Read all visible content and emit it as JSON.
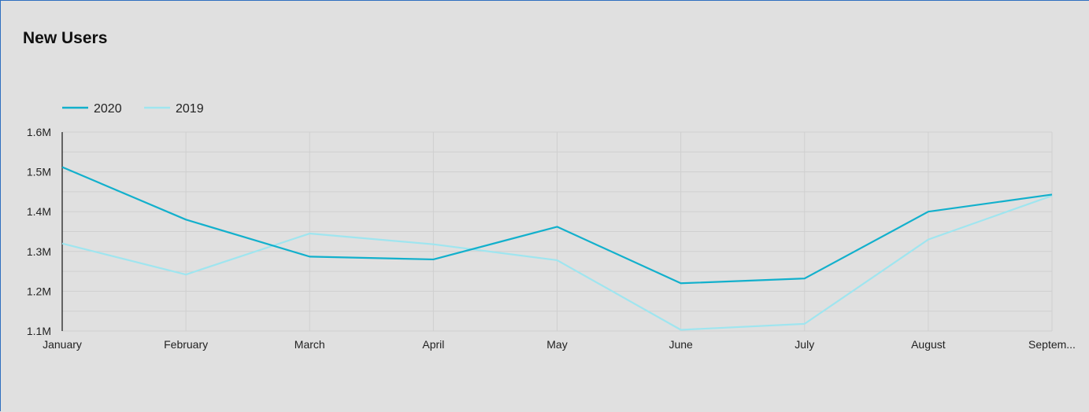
{
  "widget": {
    "title": "New Users"
  },
  "chart_data": {
    "type": "line",
    "title": "New Users",
    "xlabel": "",
    "ylabel": "",
    "categories": [
      "January",
      "February",
      "March",
      "April",
      "May",
      "June",
      "July",
      "August",
      "Septem..."
    ],
    "ylim": [
      1100000,
      1600000
    ],
    "yticks": [
      1100000,
      1200000,
      1300000,
      1400000,
      1500000,
      1600000
    ],
    "ytick_labels": [
      "1.1M",
      "1.2M",
      "1.3M",
      "1.4M",
      "1.5M",
      "1.6M"
    ],
    "grid": true,
    "legend_position": "top-left",
    "series": [
      {
        "name": "2020",
        "color": "#12b0cc",
        "values": [
          1512000,
          1380000,
          1287000,
          1280000,
          1362000,
          1220000,
          1232000,
          1400000,
          1443000
        ]
      },
      {
        "name": "2019",
        "color": "#9fe5ef",
        "values": [
          1320000,
          1242000,
          1345000,
          1318000,
          1278000,
          1103000,
          1118000,
          1330000,
          1440000
        ]
      }
    ]
  }
}
